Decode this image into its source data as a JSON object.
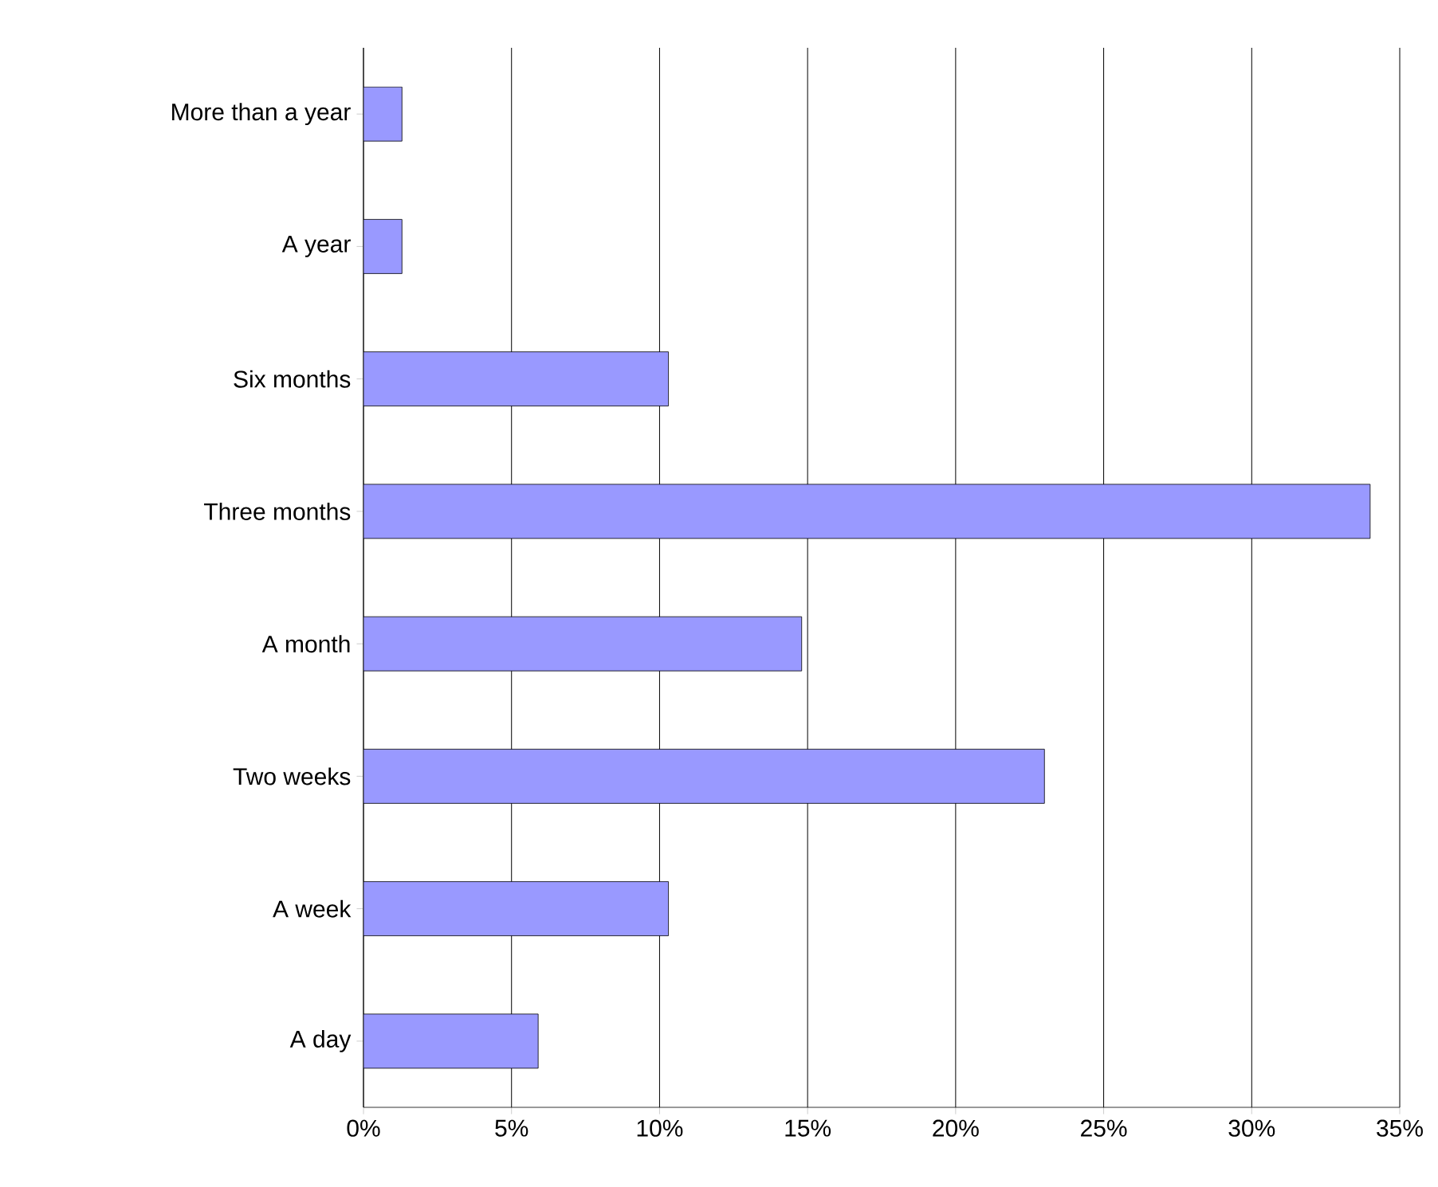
{
  "chart_data": {
    "type": "bar",
    "orientation": "horizontal",
    "categories": [
      "More than a year",
      "A year",
      "Six months",
      "Three months",
      "A month",
      "Two weeks",
      "A week",
      "A day"
    ],
    "values": [
      1.3,
      1.3,
      10.3,
      34.0,
      14.8,
      23.0,
      10.3,
      5.9
    ],
    "color": "#9999ff",
    "xlim": [
      0,
      35
    ],
    "xticks": [
      {
        "value": 0,
        "label": "0%"
      },
      {
        "value": 5,
        "label": "5%"
      },
      {
        "value": 10,
        "label": "10%"
      },
      {
        "value": 15,
        "label": "15%"
      },
      {
        "value": 20,
        "label": "20%"
      },
      {
        "value": 25,
        "label": "25%"
      },
      {
        "value": 30,
        "label": "30%"
      },
      {
        "value": 35,
        "label": "35%"
      }
    ],
    "grid": "x"
  }
}
